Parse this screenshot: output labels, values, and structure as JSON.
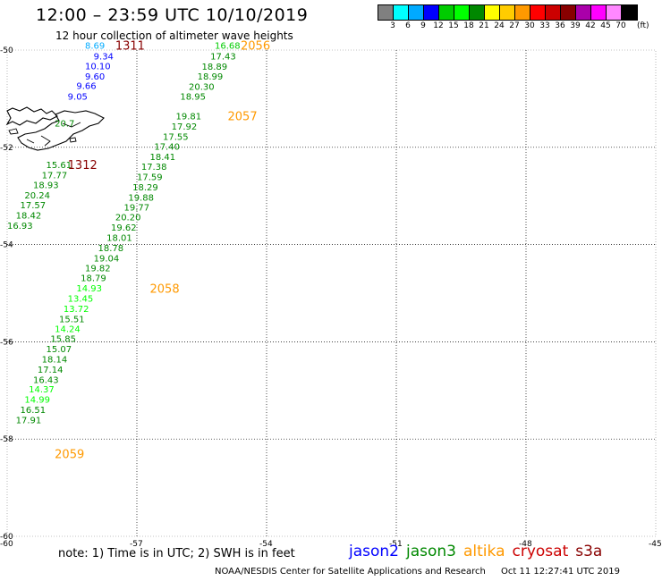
{
  "header": {
    "title": "12:00 – 23:59 UTC 10/10/2019",
    "subtitle": "12 hour collection of altimeter wave heights"
  },
  "colorbar": {
    "colors": [
      "#808080",
      "#00ffff",
      "#00aaff",
      "#0000ff",
      "#00cc00",
      "#00ff00",
      "#008800",
      "#ffff00",
      "#ffcc00",
      "#ff9900",
      "#ff0000",
      "#cc0000",
      "#880000",
      "#aa00aa",
      "#ff00ff",
      "#ff88ff",
      "#000000"
    ],
    "labels": [
      "3",
      "6",
      "9",
      "12",
      "15",
      "18",
      "21",
      "24",
      "27",
      "30",
      "33",
      "36",
      "39",
      "42",
      "45",
      "70"
    ],
    "unit": "(ft)"
  },
  "axes": {
    "lon_ticks": [
      -60,
      -57,
      -54,
      -51,
      -48,
      -45
    ],
    "lat_ticks": [
      -50,
      -52,
      -54,
      -56,
      -58,
      -60
    ],
    "lon_range": [
      -60,
      -45
    ],
    "lat_range": [
      -60,
      -50
    ],
    "grid": "dotted"
  },
  "passes": [
    {
      "id": "1311",
      "lon": -57.5,
      "lat": -49.9,
      "color": "#880000"
    },
    {
      "id": "1312",
      "lon": -58.6,
      "lat": -52.35,
      "color": "#880000"
    },
    {
      "id": "2056",
      "lon": -54.6,
      "lat": -49.9,
      "color": "#ff9900"
    },
    {
      "id": "2057",
      "lon": -54.9,
      "lat": -51.35,
      "color": "#ff9900"
    },
    {
      "id": "2058",
      "lon": -56.7,
      "lat": -54.9,
      "color": "#ff9900"
    },
    {
      "id": "2059",
      "lon": -58.9,
      "lat": -58.3,
      "color": "#ff9900"
    }
  ],
  "observations": [
    {
      "v": "8.69",
      "lon": -58.2,
      "lat": -49.9,
      "c": "#00aaff"
    },
    {
      "v": "9.34",
      "lon": -58.0,
      "lat": -50.12,
      "c": "#0000ff"
    },
    {
      "v": "10.10",
      "lon": -58.2,
      "lat": -50.32,
      "c": "#0000ff"
    },
    {
      "v": "9.60",
      "lon": -58.2,
      "lat": -50.53,
      "c": "#0000ff"
    },
    {
      "v": "9.66",
      "lon": -58.4,
      "lat": -50.73,
      "c": "#0000ff"
    },
    {
      "v": "9.05",
      "lon": -58.6,
      "lat": -50.95,
      "c": "#0000ff"
    },
    {
      "v": "20.7",
      "lon": -58.9,
      "lat": -51.5,
      "c": "#008800"
    },
    {
      "v": "15.61",
      "lon": -59.1,
      "lat": -52.35,
      "c": "#008800"
    },
    {
      "v": "17.77",
      "lon": -59.2,
      "lat": -52.56,
      "c": "#008800"
    },
    {
      "v": "18.93",
      "lon": -59.4,
      "lat": -52.77,
      "c": "#008800"
    },
    {
      "v": "20.24",
      "lon": -59.6,
      "lat": -52.98,
      "c": "#008800"
    },
    {
      "v": "17.57",
      "lon": -59.7,
      "lat": -53.18,
      "c": "#008800"
    },
    {
      "v": "18.42",
      "lon": -59.8,
      "lat": -53.39,
      "c": "#008800"
    },
    {
      "v": "16.93",
      "lon": -60.0,
      "lat": -53.6,
      "c": "#008800"
    },
    {
      "v": "16.68",
      "lon": -55.2,
      "lat": -49.9,
      "c": "#00cc00"
    },
    {
      "v": "17.43",
      "lon": -55.3,
      "lat": -50.12,
      "c": "#008800"
    },
    {
      "v": "18.89",
      "lon": -55.5,
      "lat": -50.33,
      "c": "#008800"
    },
    {
      "v": "18.99",
      "lon": -55.6,
      "lat": -50.53,
      "c": "#008800"
    },
    {
      "v": "20.30",
      "lon": -55.8,
      "lat": -50.74,
      "c": "#008800"
    },
    {
      "v": "18.95",
      "lon": -56.0,
      "lat": -50.95,
      "c": "#008800"
    },
    {
      "v": "19.81",
      "lon": -56.1,
      "lat": -51.35,
      "c": "#008800"
    },
    {
      "v": "17.92",
      "lon": -56.2,
      "lat": -51.56,
      "c": "#008800"
    },
    {
      "v": "17.55",
      "lon": -56.4,
      "lat": -51.77,
      "c": "#008800"
    },
    {
      "v": "17.40",
      "lon": -56.6,
      "lat": -51.98,
      "c": "#008800"
    },
    {
      "v": "18.41",
      "lon": -56.7,
      "lat": -52.19,
      "c": "#008800"
    },
    {
      "v": "17.38",
      "lon": -56.9,
      "lat": -52.39,
      "c": "#008800"
    },
    {
      "v": "17.59",
      "lon": -57.0,
      "lat": -52.6,
      "c": "#008800"
    },
    {
      "v": "18.29",
      "lon": -57.1,
      "lat": -52.81,
      "c": "#008800"
    },
    {
      "v": "19.88",
      "lon": -57.2,
      "lat": -53.02,
      "c": "#008800"
    },
    {
      "v": "19.77",
      "lon": -57.3,
      "lat": -53.23,
      "c": "#008800"
    },
    {
      "v": "20.20",
      "lon": -57.5,
      "lat": -53.43,
      "c": "#008800"
    },
    {
      "v": "19.62",
      "lon": -57.6,
      "lat": -53.64,
      "c": "#008800"
    },
    {
      "v": "18.01",
      "lon": -57.7,
      "lat": -53.85,
      "c": "#008800"
    },
    {
      "v": "18.78",
      "lon": -57.9,
      "lat": -54.06,
      "c": "#008800"
    },
    {
      "v": "19.04",
      "lon": -58.0,
      "lat": -54.27,
      "c": "#008800"
    },
    {
      "v": "19.82",
      "lon": -58.2,
      "lat": -54.48,
      "c": "#008800"
    },
    {
      "v": "18.79",
      "lon": -58.3,
      "lat": -54.68,
      "c": "#008800"
    },
    {
      "v": "14.93",
      "lon": -58.4,
      "lat": -54.89,
      "c": "#00ff00"
    },
    {
      "v": "13.45",
      "lon": -58.6,
      "lat": -55.1,
      "c": "#00ff00"
    },
    {
      "v": "13.72",
      "lon": -58.7,
      "lat": -55.31,
      "c": "#00ff00"
    },
    {
      "v": "15.51",
      "lon": -58.8,
      "lat": -55.52,
      "c": "#008800"
    },
    {
      "v": "14.24",
      "lon": -58.9,
      "lat": -55.73,
      "c": "#00ff00"
    },
    {
      "v": "15.85",
      "lon": -59.0,
      "lat": -55.93,
      "c": "#008800"
    },
    {
      "v": "15.07",
      "lon": -59.1,
      "lat": -56.14,
      "c": "#008800"
    },
    {
      "v": "18.14",
      "lon": -59.2,
      "lat": -56.35,
      "c": "#008800"
    },
    {
      "v": "17.14",
      "lon": -59.3,
      "lat": -56.56,
      "c": "#008800"
    },
    {
      "v": "16.43",
      "lon": -59.4,
      "lat": -56.77,
      "c": "#008800"
    },
    {
      "v": "14.37",
      "lon": -59.5,
      "lat": -56.97,
      "c": "#00ff00"
    },
    {
      "v": "14.99",
      "lon": -59.6,
      "lat": -57.18,
      "c": "#00ff00"
    },
    {
      "v": "16.51",
      "lon": -59.7,
      "lat": -57.39,
      "c": "#008800"
    },
    {
      "v": "17.91",
      "lon": -59.8,
      "lat": -57.6,
      "c": "#008800"
    }
  ],
  "note": "note:  1) Time is in UTC;  2) SWH is in feet",
  "legend": [
    {
      "name": "jason2",
      "color": "#0000ff"
    },
    {
      "name": "jason3",
      "color": "#008800"
    },
    {
      "name": "altika",
      "color": "#ff9900"
    },
    {
      "name": "cryosat",
      "color": "#cc0000"
    },
    {
      "name": "s3a",
      "color": "#880000"
    }
  ],
  "footer": {
    "credit": "NOAA/NESDIS Center for Satellite Applications and Research",
    "timestamp": "Oct 11 12:27:41 UTC 2019"
  }
}
